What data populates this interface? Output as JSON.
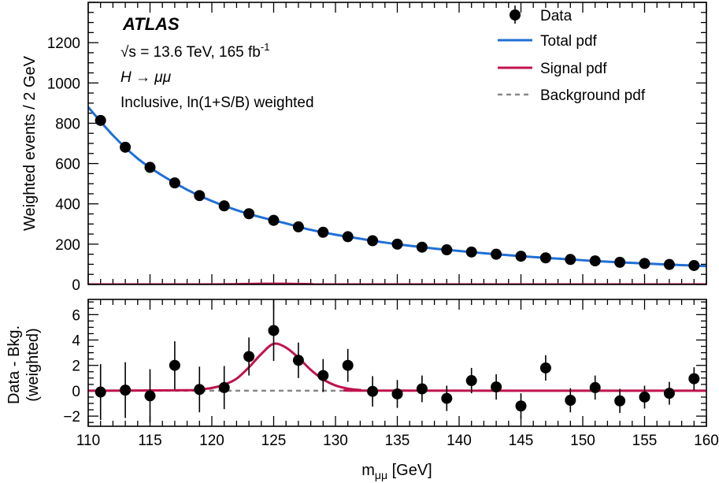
{
  "chart_data": [
    {
      "type": "scatter",
      "panel": "main",
      "experiment_label": "ATLAS",
      "annotations": {
        "energy_prefix": "√s = 13.6 TeV, 165 fb",
        "energy_sup": "-1",
        "process": "H → μμ",
        "category": "Inclusive, ln(1+S/B) weighted"
      },
      "ylabel": "Weighted events / 2 GeV",
      "xlim": [
        110,
        160
      ],
      "ylim": [
        0,
        1400
      ],
      "yticks": [
        0,
        200,
        400,
        600,
        800,
        1000,
        1200
      ],
      "legend": {
        "position": "top-right",
        "entries": [
          {
            "label": "Data",
            "style": "marker"
          },
          {
            "label": "Total pdf",
            "style": "line",
            "color": "#1f6fd6"
          },
          {
            "label": "Signal pdf",
            "style": "line",
            "color": "#c0134d"
          },
          {
            "label": "Background pdf",
            "style": "dashed",
            "color": "#888888"
          }
        ]
      },
      "series": [
        {
          "name": "Data",
          "x": [
            111,
            113,
            115,
            117,
            119,
            121,
            123,
            125,
            127,
            129,
            131,
            133,
            135,
            137,
            139,
            141,
            143,
            145,
            147,
            149,
            151,
            153,
            155,
            157,
            159
          ],
          "y": [
            814,
            681,
            581,
            504,
            441,
            390,
            351,
            318,
            286,
            259,
            237,
            217,
            200,
            185,
            172,
            161,
            150,
            140,
            132,
            124,
            117,
            110,
            104,
            99,
            94
          ]
        },
        {
          "name": "Total pdf",
          "x": [
            110,
            112,
            114,
            116,
            118,
            120,
            122,
            124,
            126,
            128,
            130,
            132,
            134,
            136,
            138,
            140,
            142,
            144,
            146,
            148,
            150,
            152,
            154,
            156,
            158,
            160
          ],
          "y": [
            880,
            740,
            625,
            540,
            470,
            414,
            369,
            333,
            303,
            271,
            247,
            227,
            208,
            192,
            178,
            166,
            155,
            145,
            136,
            128,
            120,
            113,
            107,
            101,
            96,
            91
          ]
        },
        {
          "name": "Signal pdf",
          "x": [
            110,
            119,
            122,
            124,
            125,
            126,
            128,
            131,
            160
          ],
          "y": [
            0,
            0.2,
            1.5,
            3.2,
            3.7,
            3.2,
            1.5,
            0.2,
            0
          ]
        }
      ]
    },
    {
      "type": "scatter",
      "panel": "ratio",
      "ylabel": "Data - Bkg.",
      "ylabel2": "(weighted)",
      "xlabel_main": "m",
      "xlabel_sub": "μμ",
      "xlabel_unit": " [GeV]",
      "xlim": [
        110,
        160
      ],
      "ylim": [
        -2.8,
        7.2
      ],
      "xticks": [
        110,
        115,
        120,
        125,
        130,
        135,
        140,
        145,
        150,
        155,
        160
      ],
      "yticks": [
        -2,
        0,
        2,
        4,
        6
      ],
      "series": [
        {
          "name": "Data - Bkg.",
          "x": [
            111,
            113,
            115,
            117,
            119,
            121,
            123,
            125,
            127,
            129,
            131,
            133,
            135,
            137,
            139,
            141,
            143,
            145,
            147,
            149,
            151,
            153,
            155,
            157,
            159
          ],
          "y": [
            -0.1,
            0.05,
            -0.4,
            2.0,
            0.1,
            0.25,
            2.7,
            4.75,
            2.4,
            1.2,
            2.0,
            -0.05,
            -0.25,
            0.15,
            -0.6,
            0.8,
            0.3,
            -1.2,
            1.8,
            -0.75,
            0.25,
            -0.8,
            -0.5,
            -0.2,
            0.95
          ],
          "yerr": [
            2.2,
            2.2,
            2.1,
            1.9,
            1.8,
            1.7,
            1.5,
            2.4,
            1.4,
            1.3,
            1.3,
            1.2,
            1.1,
            1.05,
            1.0,
            1.0,
            1.0,
            1.0,
            1.0,
            0.95,
            0.95,
            0.95,
            0.9,
            0.9,
            0.9
          ]
        },
        {
          "name": "Signal pdf",
          "x": [
            110,
            118,
            119,
            120,
            121,
            122,
            123,
            124,
            125,
            126,
            127,
            128,
            129,
            130,
            131,
            132,
            133,
            160
          ],
          "y": [
            0,
            0.04,
            0.1,
            0.22,
            0.48,
            0.95,
            1.85,
            2.9,
            3.7,
            3.4,
            2.6,
            1.65,
            0.9,
            0.42,
            0.17,
            0.06,
            0.01,
            0
          ]
        },
        {
          "name": "Background pdf",
          "x": [
            110,
            160
          ],
          "y": [
            0,
            0
          ]
        }
      ]
    }
  ]
}
